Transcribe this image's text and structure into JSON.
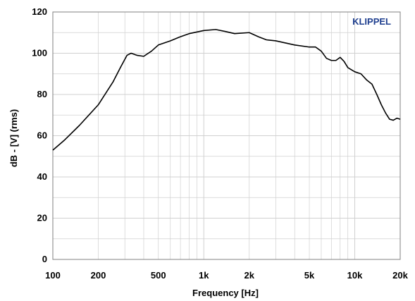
{
  "chart_data": {
    "type": "line",
    "xscale": "log",
    "xlim": [
      100,
      20000
    ],
    "ylim": [
      0,
      120
    ],
    "xlabel": "Frequency [Hz]",
    "ylabel": "dB - [V]  (rms)",
    "brand": "KLIPPEL",
    "grid": true,
    "colors": {
      "line": "#000000",
      "grid": "#d0d0d0",
      "brand": "#1f3f8f"
    },
    "x_ticks": [
      {
        "value": 100,
        "label": "100"
      },
      {
        "value": 200,
        "label": "200"
      },
      {
        "value": 500,
        "label": "500"
      },
      {
        "value": 1000,
        "label": "1k"
      },
      {
        "value": 2000,
        "label": "2k"
      },
      {
        "value": 5000,
        "label": "5k"
      },
      {
        "value": 10000,
        "label": "10k"
      },
      {
        "value": 20000,
        "label": "20k"
      }
    ],
    "y_ticks": [
      {
        "value": 0,
        "label": "0"
      },
      {
        "value": 20,
        "label": "20"
      },
      {
        "value": 40,
        "label": "40"
      },
      {
        "value": 60,
        "label": "60"
      },
      {
        "value": 80,
        "label": "80"
      },
      {
        "value": 100,
        "label": "100"
      },
      {
        "value": 120,
        "label": "120"
      }
    ],
    "series": [
      {
        "x": [
          100,
          120,
          150,
          200,
          250,
          280,
          310,
          330,
          360,
          400,
          450,
          500,
          600,
          700,
          800,
          1000,
          1200,
          1400,
          1600,
          2000,
          2300,
          2600,
          3000,
          4000,
          5000,
          5500,
          6000,
          6500,
          7000,
          7500,
          8000,
          8500,
          9000,
          10000,
          11000,
          12000,
          13000,
          14000,
          15000,
          16000,
          17000,
          18000,
          19000,
          20000
        ],
        "y": [
          53,
          58,
          65,
          75,
          86,
          93,
          99,
          100,
          99,
          98.5,
          101,
          104,
          106,
          108,
          109.5,
          111,
          111.5,
          110.5,
          109.5,
          110,
          108,
          106.5,
          106,
          104,
          103,
          103,
          101,
          97.5,
          96.5,
          96.5,
          98,
          96,
          93,
          91,
          90,
          87,
          85,
          80,
          75,
          71,
          68,
          67.5,
          68.5,
          68
        ]
      }
    ]
  }
}
